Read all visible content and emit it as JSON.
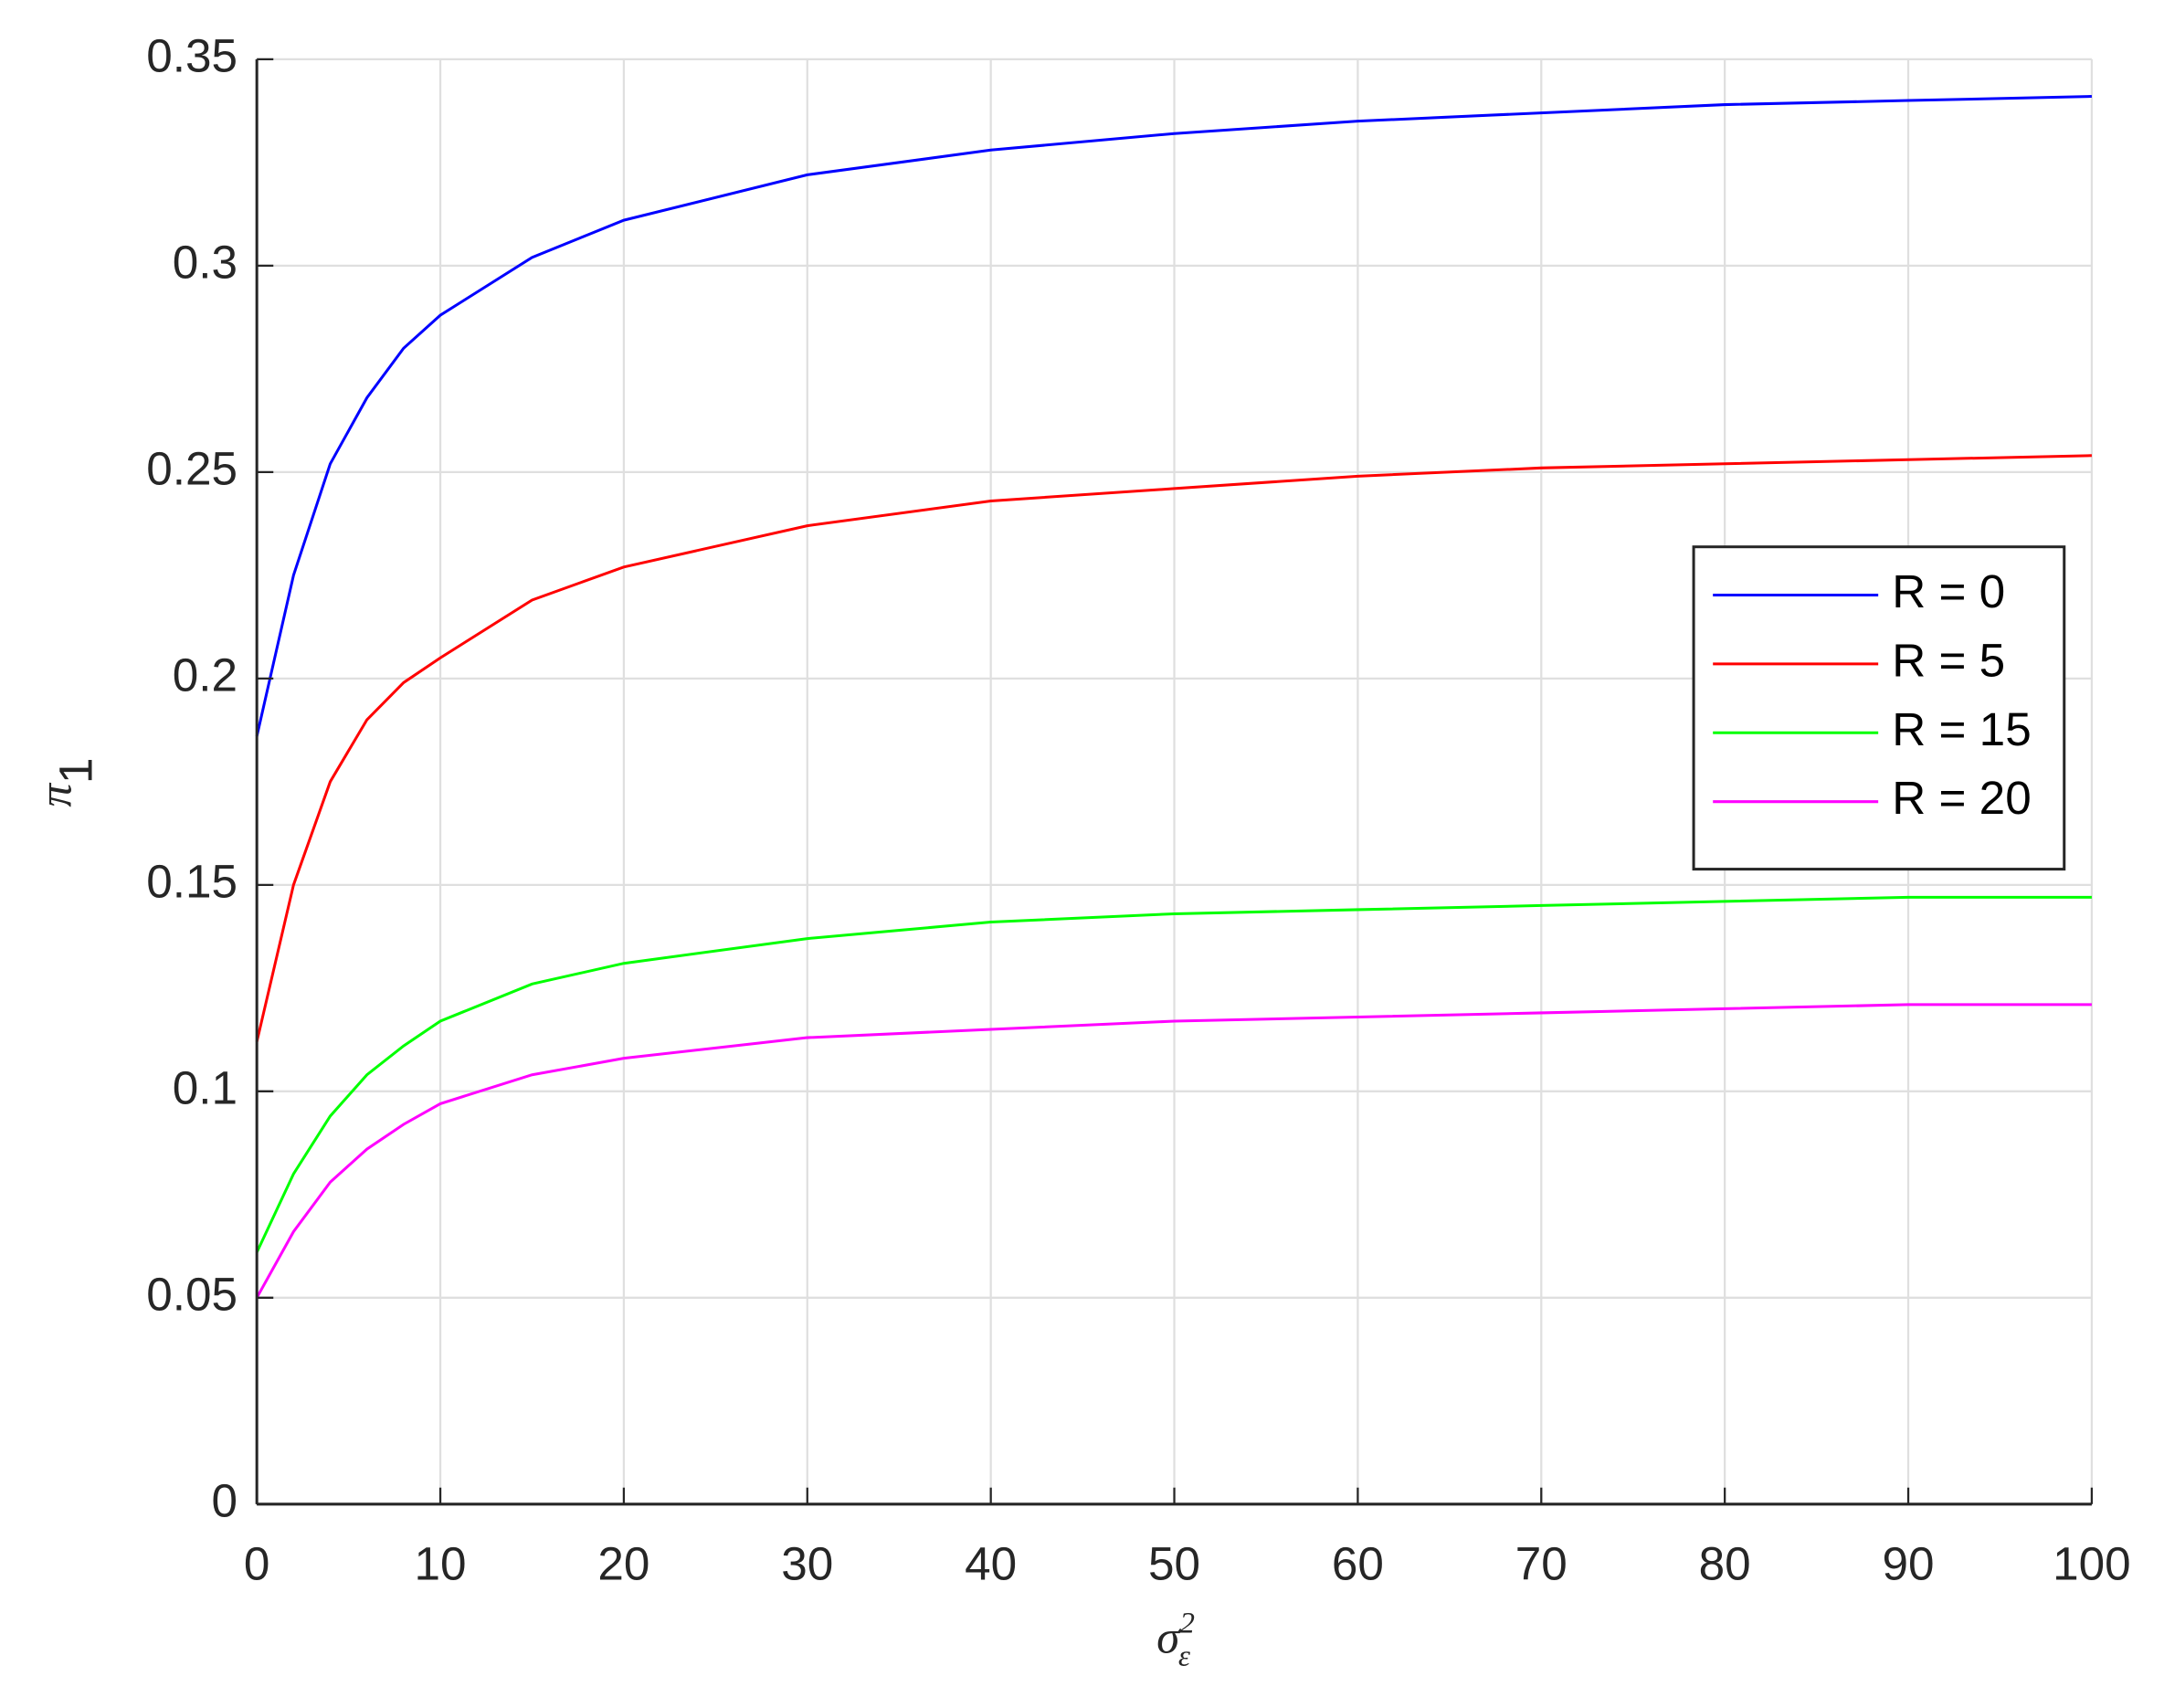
{
  "chart_data": {
    "type": "line",
    "x_label": {
      "base": "σ",
      "sub": "ε",
      "sup": "2"
    },
    "y_label": {
      "base": "π",
      "sub": "1"
    },
    "x": [
      0,
      2,
      4,
      6,
      8,
      10,
      15,
      20,
      30,
      40,
      50,
      60,
      70,
      80,
      90,
      100
    ],
    "series": [
      {
        "name": "R = 0",
        "color": "#0000ff",
        "values": [
          0.186,
          0.225,
          0.252,
          0.268,
          0.28,
          0.288,
          0.302,
          0.311,
          0.322,
          0.328,
          0.332,
          0.335,
          0.337,
          0.339,
          0.34,
          0.341
        ]
      },
      {
        "name": "R = 5",
        "color": "#ff0000",
        "values": [
          0.112,
          0.15,
          0.175,
          0.19,
          0.199,
          0.205,
          0.219,
          0.227,
          0.237,
          0.243,
          0.246,
          0.249,
          0.251,
          0.252,
          0.253,
          0.254
        ]
      },
      {
        "name": "R = 15",
        "color": "#00ff00",
        "values": [
          0.061,
          0.08,
          0.094,
          0.104,
          0.111,
          0.117,
          0.126,
          0.131,
          0.137,
          0.141,
          0.143,
          0.144,
          0.145,
          0.146,
          0.147,
          0.147
        ]
      },
      {
        "name": "R = 20",
        "color": "#ff00ff",
        "values": [
          0.05,
          0.066,
          0.078,
          0.086,
          0.092,
          0.097,
          0.104,
          0.108,
          0.113,
          0.115,
          0.117,
          0.118,
          0.119,
          0.12,
          0.121,
          0.121
        ]
      }
    ],
    "xlim": [
      0,
      100
    ],
    "xticks": [
      0,
      10,
      20,
      30,
      40,
      50,
      60,
      70,
      80,
      90,
      100
    ],
    "ylim": [
      0,
      0.35
    ],
    "yticks": [
      0,
      0.05,
      0.1,
      0.15,
      0.2,
      0.25,
      0.3,
      0.35
    ],
    "grid": true,
    "legend": "east"
  }
}
